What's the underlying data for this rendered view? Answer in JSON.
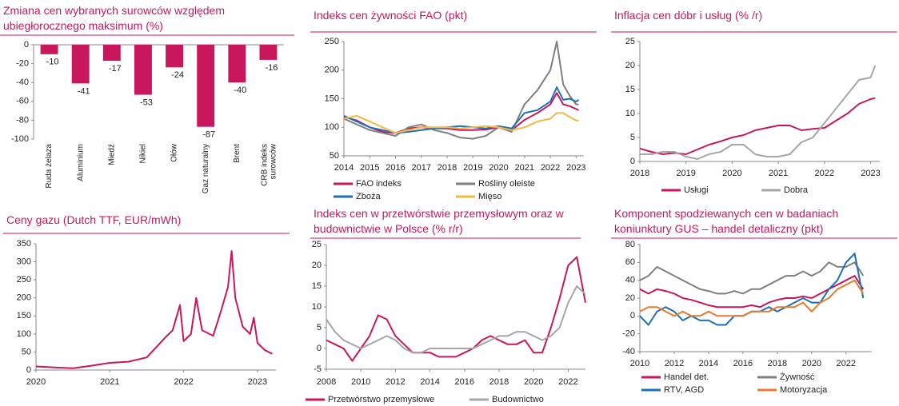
{
  "chart_data": [
    {
      "type": "bar",
      "title": "Zmiana cen wybranych surowców względem ubiegłorocznego maksimum (%)",
      "categories": [
        "Ruda żelaza",
        "Aluminium",
        "Miedź",
        "Nikiel",
        "Ołów",
        "Gaz naturalny",
        "Brent",
        "CRB indeks surowców"
      ],
      "values": [
        -10,
        -41,
        -17,
        -53,
        -24,
        -87,
        -40,
        -16
      ],
      "color": "#c8175d",
      "ylim": [
        -100,
        0
      ],
      "yticks": [
        0,
        -20,
        -40,
        -60,
        -80,
        -100
      ]
    },
    {
      "type": "line",
      "title": "Indeks cen żywności FAO (pkt)",
      "x": [
        2014,
        2014.5,
        2015,
        2015.5,
        2016,
        2016.5,
        2017,
        2017.5,
        2018,
        2018.5,
        2019,
        2019.5,
        2020,
        2020.5,
        2021,
        2021.5,
        2022,
        2022.25,
        2022.5,
        2022.75,
        2023,
        2023.1
      ],
      "xlim": [
        2014,
        2023.3
      ],
      "xticks": [
        2014,
        2015,
        2016,
        2017,
        2018,
        2019,
        2020,
        2021,
        2022,
        2023
      ],
      "ylim": [
        50,
        250
      ],
      "yticks": [
        50,
        100,
        150,
        200,
        250
      ],
      "legend": "below",
      "series": [
        {
          "name": "FAO indeks",
          "color": "#c8175d",
          "values": [
            118,
            112,
            100,
            92,
            90,
            98,
            100,
            98,
            98,
            95,
            95,
            96,
            100,
            95,
            113,
            125,
            140,
            160,
            140,
            137,
            132,
            130
          ]
        },
        {
          "name": "Rośliny oleiste",
          "color": "#7f7f7f",
          "values": [
            115,
            105,
            95,
            90,
            85,
            100,
            105,
            95,
            90,
            82,
            80,
            85,
            100,
            92,
            140,
            165,
            200,
            250,
            175,
            155,
            140,
            140
          ]
        },
        {
          "name": "Zboża",
          "color": "#1f6fb5",
          "values": [
            120,
            110,
            100,
            95,
            90,
            92,
            95,
            98,
            100,
            102,
            100,
            98,
            102,
            98,
            125,
            130,
            145,
            170,
            148,
            150,
            145,
            148
          ]
        },
        {
          "name": "Mięso",
          "color": "#f4b942",
          "values": [
            115,
            120,
            110,
            100,
            90,
            95,
            100,
            100,
            100,
            98,
            100,
            102,
            100,
            95,
            100,
            110,
            115,
            125,
            125,
            118,
            112,
            112
          ]
        }
      ]
    },
    {
      "type": "line",
      "title": "Inflacja cen dóbr i usług (% /r)",
      "x": [
        2018,
        2018.25,
        2018.5,
        2018.75,
        2019,
        2019.25,
        2019.5,
        2019.75,
        2020,
        2020.25,
        2020.5,
        2020.75,
        2021,
        2021.25,
        2021.5,
        2021.75,
        2022,
        2022.25,
        2022.5,
        2022.75,
        2023,
        2023.1
      ],
      "xlim": [
        2018,
        2023.2
      ],
      "xticks": [
        2018,
        2019,
        2020,
        2021,
        2022,
        2023
      ],
      "ylim": [
        0,
        25
      ],
      "yticks": [
        0,
        5,
        10,
        15,
        20,
        25
      ],
      "legend": "below",
      "series": [
        {
          "name": "Usługi",
          "color": "#c8175d",
          "values": [
            2.7,
            2,
            1.5,
            1.8,
            1.5,
            2.5,
            3.5,
            4.2,
            5,
            5.5,
            6.5,
            7,
            7.5,
            7.5,
            6.5,
            6.8,
            7,
            8.5,
            10,
            12,
            13,
            13.2
          ]
        },
        {
          "name": "Dobra",
          "color": "#a6a6a6",
          "values": [
            1.5,
            1.5,
            2,
            2,
            1,
            0.5,
            1.5,
            2,
            3.5,
            3.5,
            1.5,
            1,
            1,
            1.5,
            4,
            5,
            8,
            11,
            14,
            17,
            17.5,
            20
          ]
        }
      ]
    },
    {
      "type": "line",
      "title": "Ceny gazu (Dutch TTF, EUR/mWh)",
      "x": [
        2020,
        2020.25,
        2020.5,
        2020.75,
        2021,
        2021.25,
        2021.5,
        2021.75,
        2021.85,
        2021.95,
        2022,
        2022.1,
        2022.17,
        2022.25,
        2022.4,
        2022.5,
        2022.6,
        2022.65,
        2022.7,
        2022.8,
        2022.9,
        2022.95,
        2023,
        2023.1,
        2023.2
      ],
      "xlim": [
        2020,
        2023.25
      ],
      "xticks": [
        2020,
        2021,
        2022,
        2023
      ],
      "ylim": [
        0,
        350
      ],
      "yticks": [
        0,
        50,
        100,
        150,
        200,
        250,
        300,
        350
      ],
      "series": [
        {
          "color": "#c8175d",
          "values": [
            10,
            7,
            5,
            12,
            20,
            23,
            35,
            90,
            110,
            180,
            80,
            100,
            200,
            110,
            95,
            160,
            230,
            330,
            200,
            120,
            100,
            145,
            75,
            55,
            45
          ]
        }
      ]
    },
    {
      "type": "line",
      "title": "Indeks cen w przetwórstwie przemysłowym oraz w budownictwie w Polsce (% r/r)",
      "x": [
        2008,
        2008.5,
        2009,
        2009.5,
        2010,
        2010.5,
        2011,
        2011.5,
        2012,
        2012.5,
        2013,
        2013.5,
        2014,
        2014.5,
        2015,
        2015.5,
        2016,
        2016.5,
        2017,
        2017.5,
        2018,
        2018.5,
        2019,
        2019.5,
        2020,
        2020.5,
        2021,
        2021.5,
        2022,
        2022.5,
        2023
      ],
      "xlim": [
        2008,
        2023
      ],
      "xticks": [
        2008,
        2010,
        2012,
        2014,
        2016,
        2018,
        2020,
        2022
      ],
      "ylim": [
        -5,
        25
      ],
      "yticks": [
        -5,
        0,
        5,
        10,
        15,
        20,
        25
      ],
      "legend": "below",
      "series": [
        {
          "name": "Przetwórstwo przemysłowe",
          "color": "#c8175d",
          "values": [
            2,
            1,
            0,
            -3,
            0,
            3,
            8,
            7,
            3,
            1,
            -1,
            -1,
            -1,
            -2,
            -2,
            -2,
            -1,
            0,
            2,
            3,
            2,
            1,
            1,
            2,
            -1,
            -1,
            5,
            12,
            20,
            22,
            11
          ]
        },
        {
          "name": "Budownictwo",
          "color": "#a6a6a6",
          "values": [
            7,
            4,
            2,
            1,
            0,
            1,
            2,
            3,
            2,
            0,
            -1,
            -1,
            0,
            0,
            0,
            0,
            0,
            0,
            1,
            2,
            3,
            3,
            4,
            4,
            3,
            2,
            3,
            5,
            11,
            15,
            13
          ]
        }
      ]
    },
    {
      "type": "line",
      "title": "Komponent spodziewanych cen w badaniach koniunktury GUS – handel detaliczny (pkt)",
      "x": [
        2010,
        2010.5,
        2011,
        2011.5,
        2012,
        2012.5,
        2013,
        2013.5,
        2014,
        2014.5,
        2015,
        2015.5,
        2016,
        2016.5,
        2017,
        2017.5,
        2018,
        2018.5,
        2019,
        2019.5,
        2020,
        2020.5,
        2021,
        2021.5,
        2022,
        2022.5,
        2023
      ],
      "xlim": [
        2010,
        2023.5
      ],
      "xticks": [
        2010,
        2012,
        2014,
        2016,
        2018,
        2020,
        2022
      ],
      "ylim": [
        -40,
        80
      ],
      "yticks": [
        -40,
        -20,
        0,
        20,
        40,
        60,
        80
      ],
      "legend": "below",
      "series": [
        {
          "name": "Handel det.",
          "color": "#c8175d",
          "values": [
            30,
            25,
            30,
            28,
            25,
            20,
            18,
            15,
            12,
            10,
            10,
            10,
            10,
            12,
            10,
            15,
            18,
            20,
            20,
            22,
            20,
            25,
            30,
            35,
            40,
            45,
            30
          ]
        },
        {
          "name": "Żywność",
          "color": "#7f7f7f",
          "values": [
            40,
            45,
            55,
            50,
            45,
            40,
            35,
            30,
            28,
            25,
            25,
            28,
            25,
            30,
            30,
            35,
            40,
            45,
            45,
            50,
            45,
            50,
            60,
            55,
            55,
            60,
            45
          ]
        },
        {
          "name": "RTV, AGD",
          "color": "#1f6fb5",
          "values": [
            0,
            -10,
            5,
            10,
            5,
            -5,
            0,
            -5,
            -5,
            -10,
            -10,
            0,
            0,
            5,
            5,
            10,
            5,
            10,
            15,
            20,
            15,
            15,
            30,
            40,
            60,
            70,
            20
          ]
        },
        {
          "name": "Motoryzacja",
          "color": "#e87b2e",
          "values": [
            5,
            10,
            10,
            5,
            0,
            5,
            0,
            0,
            5,
            0,
            0,
            0,
            0,
            5,
            5,
            5,
            10,
            10,
            10,
            15,
            5,
            15,
            20,
            30,
            35,
            40,
            25
          ]
        }
      ]
    }
  ]
}
